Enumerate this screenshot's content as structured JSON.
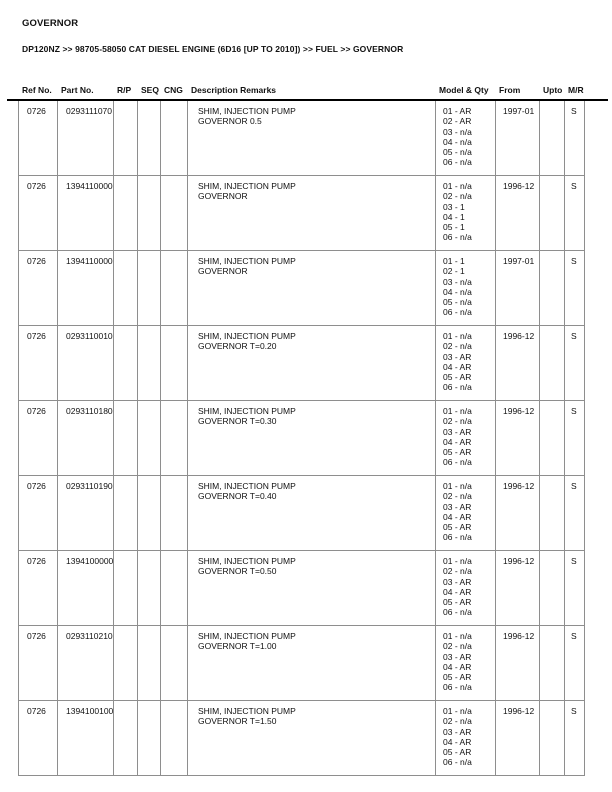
{
  "page": {
    "title": "GOVERNOR",
    "breadcrumb": "DP120NZ >> 98705-58050 CAT DIESEL ENGINE (6D16 [UP TO 2010]) >> FUEL >> GOVERNOR"
  },
  "colors": {
    "grid_border": "#8e8e8e",
    "header_rule": "#000000",
    "text": "#111111",
    "background": "#ffffff"
  },
  "table": {
    "columns": [
      "Ref No.",
      "Part No.",
      "R/P",
      "SEQ",
      "CNG",
      "Description Remarks",
      "Model & Qty",
      "From",
      "Upto",
      "M/R"
    ],
    "rows": [
      {
        "ref_no": "0726",
        "part_no": "0293111070",
        "rp": "",
        "seq": "",
        "cng": "",
        "description": [
          "SHIM, INJECTION PUMP",
          "GOVERNOR 0.5"
        ],
        "model_qty": [
          "01 - AR",
          "02 - AR",
          "03 - n/a",
          "04 - n/a",
          "05 - n/a",
          "06 - n/a"
        ],
        "from": "1997-01",
        "upto": "",
        "mr": "S"
      },
      {
        "ref_no": "0726",
        "part_no": "1394110000",
        "rp": "",
        "seq": "",
        "cng": "",
        "description": [
          "SHIM, INJECTION PUMP",
          "GOVERNOR"
        ],
        "model_qty": [
          "01 - n/a",
          "02 - n/a",
          "03 - 1",
          "04 - 1",
          "05 - 1",
          "06 - n/a"
        ],
        "from": "1996-12",
        "upto": "",
        "mr": "S"
      },
      {
        "ref_no": "0726",
        "part_no": "1394110000",
        "rp": "",
        "seq": "",
        "cng": "",
        "description": [
          "SHIM, INJECTION PUMP",
          "GOVERNOR"
        ],
        "model_qty": [
          "01 - 1",
          "02 - 1",
          "03 - n/a",
          "04 - n/a",
          "05 - n/a",
          "06 - n/a"
        ],
        "from": "1997-01",
        "upto": "",
        "mr": "S"
      },
      {
        "ref_no": "0726",
        "part_no": "0293110010",
        "rp": "",
        "seq": "",
        "cng": "",
        "description": [
          "SHIM, INJECTION PUMP",
          "GOVERNOR T=0.20"
        ],
        "model_qty": [
          "01 - n/a",
          "02 - n/a",
          "03 - AR",
          "04 - AR",
          "05 - AR",
          "06 - n/a"
        ],
        "from": "1996-12",
        "upto": "",
        "mr": "S"
      },
      {
        "ref_no": "0726",
        "part_no": "0293110180",
        "rp": "",
        "seq": "",
        "cng": "",
        "description": [
          "SHIM, INJECTION PUMP",
          "GOVERNOR T=0.30"
        ],
        "model_qty": [
          "01 - n/a",
          "02 - n/a",
          "03 - AR",
          "04 - AR",
          "05 - AR",
          "06 - n/a"
        ],
        "from": "1996-12",
        "upto": "",
        "mr": "S"
      },
      {
        "ref_no": "0726",
        "part_no": "0293110190",
        "rp": "",
        "seq": "",
        "cng": "",
        "description": [
          "SHIM, INJECTION PUMP",
          "GOVERNOR T=0.40"
        ],
        "model_qty": [
          "01 - n/a",
          "02 - n/a",
          "03 - AR",
          "04 - AR",
          "05 - AR",
          "06 - n/a"
        ],
        "from": "1996-12",
        "upto": "",
        "mr": "S"
      },
      {
        "ref_no": "0726",
        "part_no": "1394100000",
        "rp": "",
        "seq": "",
        "cng": "",
        "description": [
          "SHIM, INJECTION PUMP",
          "GOVERNOR T=0.50"
        ],
        "model_qty": [
          "01 - n/a",
          "02 - n/a",
          "03 - AR",
          "04 - AR",
          "05 - AR",
          "06 - n/a"
        ],
        "from": "1996-12",
        "upto": "",
        "mr": "S"
      },
      {
        "ref_no": "0726",
        "part_no": "0293110210",
        "rp": "",
        "seq": "",
        "cng": "",
        "description": [
          "SHIM, INJECTION PUMP",
          "GOVERNOR T=1.00"
        ],
        "model_qty": [
          "01 - n/a",
          "02 - n/a",
          "03 - AR",
          "04 - AR",
          "05 - AR",
          "06 - n/a"
        ],
        "from": "1996-12",
        "upto": "",
        "mr": "S"
      },
      {
        "ref_no": "0726",
        "part_no": "1394100100",
        "rp": "",
        "seq": "",
        "cng": "",
        "description": [
          "SHIM, INJECTION PUMP",
          "GOVERNOR T=1.50"
        ],
        "model_qty": [
          "01 - n/a",
          "02 - n/a",
          "03 - AR",
          "04 - AR",
          "05 - AR",
          "06 - n/a"
        ],
        "from": "1996-12",
        "upto": "",
        "mr": "S"
      }
    ]
  }
}
